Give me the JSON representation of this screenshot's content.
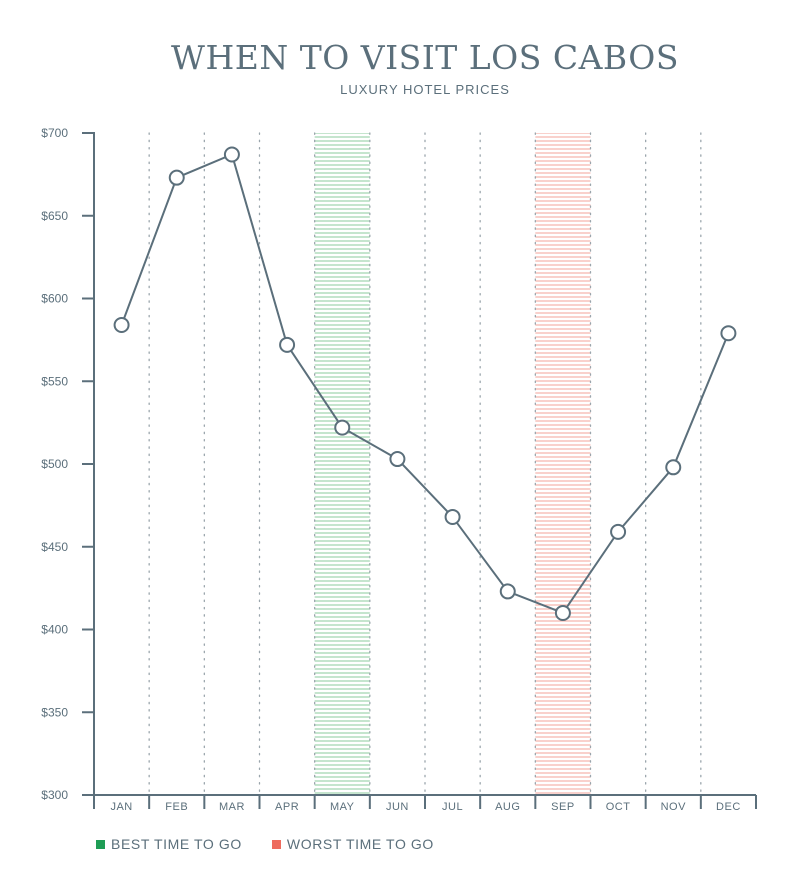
{
  "chart_data": {
    "type": "line",
    "title": "WHEN TO VISIT LOS CABOS",
    "subtitle": "LUXURY HOTEL PRICES",
    "categories": [
      "JAN",
      "FEB",
      "MAR",
      "APR",
      "MAY",
      "JUN",
      "JUL",
      "AUG",
      "SEP",
      "OCT",
      "NOV",
      "DEC"
    ],
    "series": [
      {
        "values": [
          584,
          673,
          687,
          572,
          522,
          503,
          468,
          423,
          410,
          459,
          498,
          579
        ]
      }
    ],
    "ylim": [
      300,
      700
    ],
    "yticks": [
      300,
      350,
      400,
      450,
      500,
      550,
      600,
      650,
      700
    ],
    "ytick_labels": [
      "$300",
      "$350",
      "$400",
      "$450",
      "$500",
      "$550",
      "$600",
      "$650",
      "$700"
    ],
    "highlights": [
      {
        "category": "MAY",
        "type": "best",
        "color": "#2aa15a"
      },
      {
        "category": "SEP",
        "type": "worst",
        "color": "#ee6b5e"
      }
    ],
    "legend": [
      {
        "label": "BEST TIME TO GO",
        "color": "#1f9d55"
      },
      {
        "label": "WORST TIME TO GO",
        "color": "#ee6b5e"
      }
    ],
    "line_color": "#5b6f7b",
    "grid": "vertical-dotted",
    "legend_position": "bottom-left"
  }
}
